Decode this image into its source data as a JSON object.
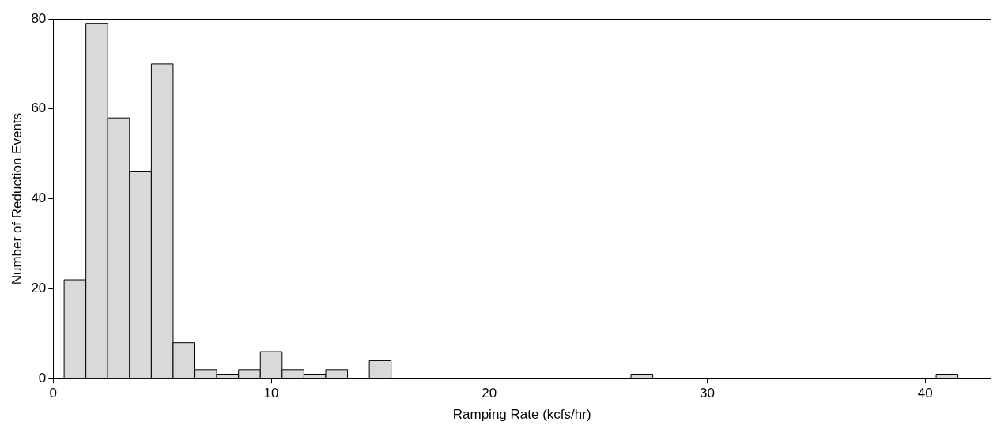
{
  "chart_data": {
    "type": "histogram",
    "xlabel": "Ramping Rate (kcfs/hr)",
    "ylabel": "Number of Reduction Events",
    "bins": [
      0.5,
      1.5,
      2.5,
      3.5,
      4.5,
      5.5,
      6.5,
      7.5,
      8.5,
      9.5,
      10.5,
      11.5,
      12.5,
      13.5,
      14.5,
      15.5,
      16.5,
      17.5,
      18.5,
      19.5,
      20.5,
      21.5,
      22.5,
      23.5,
      24.5,
      25.5,
      26.5,
      27.5,
      28.5,
      29.5,
      30.5,
      31.5,
      32.5,
      33.5,
      34.5,
      35.5,
      36.5,
      37.5,
      38.5,
      39.5,
      40.5,
      41.5
    ],
    "values": [
      22,
      79,
      58,
      46,
      70,
      8,
      2,
      1,
      2,
      6,
      2,
      1,
      2,
      0,
      4,
      0,
      0,
      0,
      0,
      0,
      0,
      0,
      0,
      0,
      0,
      0,
      1,
      0,
      0,
      0,
      0,
      0,
      0,
      0,
      0,
      0,
      0,
      0,
      0,
      0,
      1
    ],
    "color": "#d9d9d9",
    "xlim": [
      0,
      43
    ],
    "xticks": [
      0,
      10,
      20,
      30,
      40
    ],
    "ylim": [
      0,
      80
    ],
    "yticks": [
      0,
      20,
      40,
      60,
      80
    ],
    "grid": false,
    "legend": false
  }
}
